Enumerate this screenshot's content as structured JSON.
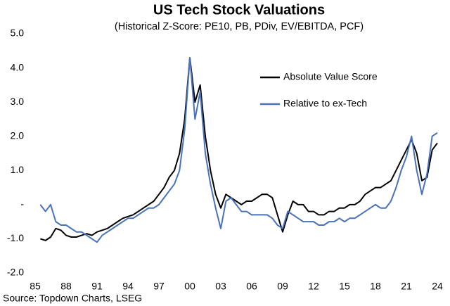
{
  "chart_data": {
    "type": "line",
    "title": "US Tech Stock Valuations",
    "subtitle": "(Historical Z-Score: PE10, PB, PDiv, EV/EBITDA, PCF)",
    "source": "Source: Topdown Charts, LSEG",
    "legend": "upper right",
    "grid": false,
    "x": [
      1985.5,
      1986,
      1986.5,
      1987,
      1987.5,
      1988,
      1988.5,
      1989,
      1989.5,
      1990,
      1990.5,
      1991,
      1991.5,
      1992,
      1992.5,
      1993,
      1993.5,
      1994,
      1994.5,
      1995,
      1995.5,
      1996,
      1996.5,
      1997,
      1997.5,
      1998,
      1998.5,
      1999,
      1999.5,
      2000,
      2000.5,
      2001,
      2001.5,
      2002,
      2002.5,
      2003,
      2003.5,
      2004,
      2004.5,
      2005,
      2005.5,
      2006,
      2006.5,
      2007,
      2007.5,
      2008,
      2008.5,
      2009,
      2009.5,
      2010,
      2010.5,
      2011,
      2011.5,
      2012,
      2012.5,
      2013,
      2013.5,
      2014,
      2014.5,
      2015,
      2015.5,
      2016,
      2016.5,
      2017,
      2017.5,
      2018,
      2018.5,
      2019,
      2019.5,
      2020,
      2020.5,
      2021,
      2021.5,
      2022,
      2022.5,
      2023,
      2023.5,
      2024
    ],
    "series": [
      {
        "name": "Absolute Value Score",
        "color": "#000000",
        "values": [
          -1.0,
          -1.05,
          -0.95,
          -0.7,
          -0.75,
          -0.9,
          -0.95,
          -0.95,
          -0.9,
          -0.85,
          -0.9,
          -0.8,
          -0.75,
          -0.7,
          -0.6,
          -0.5,
          -0.4,
          -0.35,
          -0.3,
          -0.2,
          -0.1,
          0.0,
          0.1,
          0.3,
          0.5,
          0.8,
          1.0,
          1.5,
          2.5,
          4.3,
          3.0,
          3.5,
          2.0,
          1.0,
          0.3,
          -0.1,
          0.3,
          0.2,
          0.1,
          0.0,
          0.1,
          0.1,
          0.2,
          0.3,
          0.3,
          0.2,
          -0.3,
          -0.8,
          -0.3,
          0.1,
          0.0,
          0.0,
          -0.2,
          -0.2,
          -0.3,
          -0.3,
          -0.2,
          -0.2,
          -0.1,
          -0.1,
          0.0,
          0.0,
          0.1,
          0.3,
          0.4,
          0.5,
          0.5,
          0.6,
          0.7,
          1.0,
          1.3,
          1.6,
          1.9,
          1.5,
          0.7,
          0.8,
          1.6,
          1.8
        ]
      },
      {
        "name": "Relative to ex-Tech",
        "color": "#4a72b8",
        "values": [
          0.0,
          -0.2,
          0.0,
          -0.5,
          -0.6,
          -0.6,
          -0.7,
          -0.8,
          -0.8,
          -0.9,
          -1.0,
          -1.1,
          -0.9,
          -0.8,
          -0.7,
          -0.6,
          -0.5,
          -0.4,
          -0.4,
          -0.3,
          -0.2,
          -0.1,
          -0.1,
          0.0,
          0.2,
          0.4,
          0.6,
          1.0,
          2.2,
          4.3,
          2.5,
          3.3,
          1.5,
          0.6,
          -0.1,
          -0.7,
          0.1,
          0.2,
          0.0,
          -0.2,
          -0.2,
          -0.3,
          -0.3,
          -0.3,
          -0.3,
          -0.4,
          -0.6,
          -0.7,
          -0.2,
          -0.3,
          -0.4,
          -0.5,
          -0.5,
          -0.5,
          -0.6,
          -0.6,
          -0.5,
          -0.5,
          -0.4,
          -0.5,
          -0.4,
          -0.4,
          -0.3,
          -0.2,
          -0.1,
          0.0,
          -0.1,
          -0.1,
          0.1,
          0.5,
          1.0,
          1.4,
          2.0,
          1.0,
          0.3,
          0.9,
          2.0,
          2.1
        ]
      }
    ],
    "xlim": [
      1985,
      2024
    ],
    "xticks": [
      {
        "value": 1985,
        "label": "85"
      },
      {
        "value": 1988,
        "label": "88"
      },
      {
        "value": 1991,
        "label": "91"
      },
      {
        "value": 1994,
        "label": "94"
      },
      {
        "value": 1997,
        "label": "97"
      },
      {
        "value": 2000,
        "label": "00"
      },
      {
        "value": 2003,
        "label": "03"
      },
      {
        "value": 2006,
        "label": "06"
      },
      {
        "value": 2009,
        "label": "09"
      },
      {
        "value": 2012,
        "label": "12"
      },
      {
        "value": 2015,
        "label": "15"
      },
      {
        "value": 2018,
        "label": "18"
      },
      {
        "value": 2021,
        "label": "21"
      },
      {
        "value": 2024,
        "label": "24"
      }
    ],
    "ylim": [
      -2,
      5
    ],
    "yticks": [
      {
        "value": 5,
        "label": "5.0"
      },
      {
        "value": 4,
        "label": "4.0"
      },
      {
        "value": 3,
        "label": "3.0"
      },
      {
        "value": 2,
        "label": "2.0"
      },
      {
        "value": 1,
        "label": "1.0"
      },
      {
        "value": 0,
        "label": "-"
      },
      {
        "value": -1,
        "label": "-1.0"
      },
      {
        "value": -2,
        "label": "-2.0"
      }
    ]
  }
}
